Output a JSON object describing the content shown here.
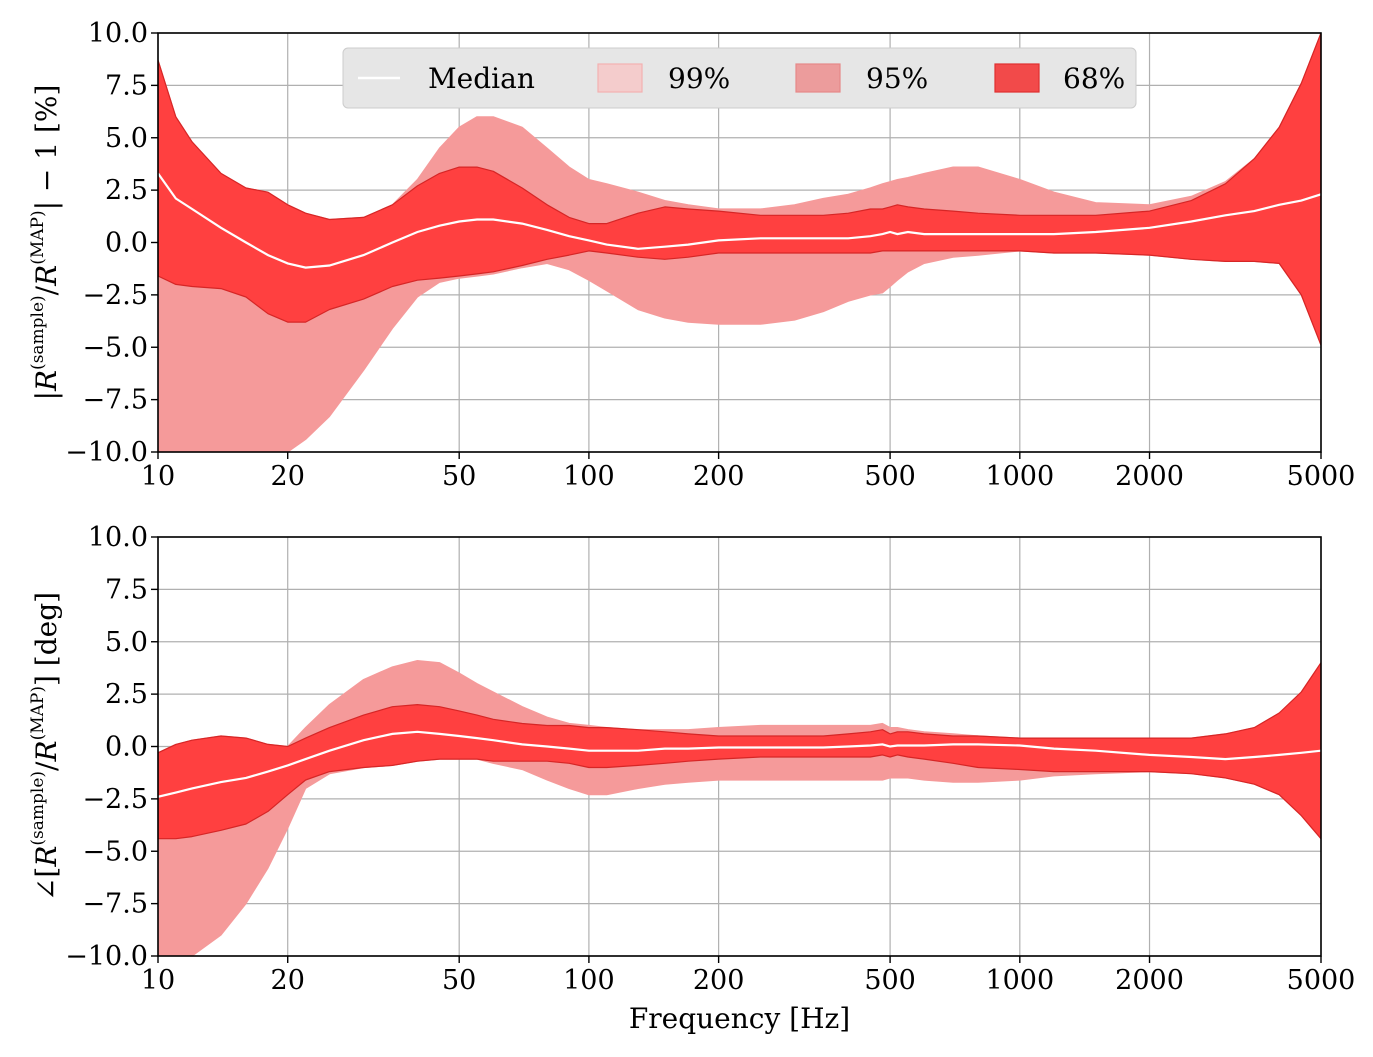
{
  "chart_data": [
    {
      "type": "area",
      "ylabel": "|R^(sample)/R^(MAP)| − 1 [%]",
      "ylabel_parts": {
        "pre": "|",
        "r1": "R",
        "sup1": "(sample)",
        "slash": "/",
        "r2": "R",
        "sup2": "(MAP)",
        "post": "| − 1 [%]"
      },
      "xlabel": "",
      "xscale": "log",
      "xlim": [
        10,
        5000
      ],
      "ylim": [
        -10,
        10
      ],
      "grid": true,
      "xticks": [
        10,
        20,
        50,
        100,
        200,
        500,
        1000,
        2000,
        5000
      ],
      "xtick_labels": [
        "10",
        "20",
        "50",
        "100",
        "200",
        "500",
        "1000",
        "2000",
        "5000"
      ],
      "yticks": [
        -10,
        -7.5,
        -5,
        -2.5,
        0,
        2.5,
        5,
        7.5,
        10
      ],
      "ytick_labels": [
        "−10.0",
        "−7.5",
        "−5.0",
        "−2.5",
        "0.0",
        "2.5",
        "5.0",
        "7.5",
        "10.0"
      ],
      "legend": {
        "placement": "top-center",
        "entries": [
          "Median",
          "99%",
          "95%",
          "68%"
        ]
      },
      "x": [
        10,
        11,
        12,
        14,
        16,
        18,
        20,
        22,
        25,
        30,
        35,
        40,
        45,
        50,
        55,
        60,
        70,
        80,
        90,
        100,
        110,
        130,
        150,
        170,
        200,
        250,
        300,
        350,
        400,
        450,
        480,
        500,
        520,
        550,
        600,
        700,
        800,
        1000,
        1200,
        1500,
        2000,
        2500,
        3000,
        3500,
        4000,
        4500,
        5000
      ],
      "series": [
        {
          "name": "Median",
          "values": [
            3.3,
            2.1,
            1.6,
            0.7,
            0.0,
            -0.6,
            -1.0,
            -1.2,
            -1.1,
            -0.6,
            0.0,
            0.5,
            0.8,
            1.0,
            1.1,
            1.1,
            0.9,
            0.6,
            0.3,
            0.1,
            -0.1,
            -0.3,
            -0.2,
            -0.1,
            0.1,
            0.2,
            0.2,
            0.2,
            0.2,
            0.3,
            0.4,
            0.5,
            0.4,
            0.5,
            0.4,
            0.4,
            0.4,
            0.4,
            0.4,
            0.5,
            0.7,
            1.0,
            1.3,
            1.5,
            1.8,
            2.0,
            2.3
          ]
        },
        {
          "name": "68%",
          "upper": [
            8.7,
            6.0,
            4.8,
            3.3,
            2.6,
            2.4,
            1.8,
            1.4,
            1.1,
            1.2,
            1.8,
            2.7,
            3.3,
            3.6,
            3.6,
            3.4,
            2.6,
            1.8,
            1.2,
            0.9,
            0.9,
            1.4,
            1.7,
            1.6,
            1.5,
            1.3,
            1.3,
            1.3,
            1.4,
            1.6,
            1.6,
            1.7,
            1.8,
            1.7,
            1.6,
            1.5,
            1.4,
            1.3,
            1.3,
            1.3,
            1.5,
            2.0,
            2.8,
            4.0,
            5.5,
            7.6,
            10.0
          ],
          "lower": [
            -1.6,
            -2.0,
            -2.1,
            -2.2,
            -2.6,
            -3.4,
            -3.8,
            -3.8,
            -3.2,
            -2.7,
            -2.1,
            -1.8,
            -1.7,
            -1.6,
            -1.5,
            -1.4,
            -1.1,
            -0.8,
            -0.6,
            -0.4,
            -0.5,
            -0.7,
            -0.8,
            -0.7,
            -0.5,
            -0.5,
            -0.5,
            -0.5,
            -0.5,
            -0.5,
            -0.4,
            -0.4,
            -0.4,
            -0.4,
            -0.4,
            -0.4,
            -0.4,
            -0.4,
            -0.5,
            -0.5,
            -0.6,
            -0.8,
            -0.9,
            -0.9,
            -1.0,
            -2.5,
            -4.9
          ]
        },
        {
          "name": "95%",
          "upper": [
            8.7,
            6.0,
            4.8,
            3.3,
            2.6,
            2.4,
            1.8,
            1.4,
            1.1,
            1.2,
            1.8,
            3.0,
            4.5,
            5.5,
            6.0,
            6.0,
            5.5,
            4.5,
            3.6,
            3.0,
            2.8,
            2.4,
            2.0,
            1.8,
            1.6,
            1.6,
            1.8,
            2.1,
            2.3,
            2.6,
            2.8,
            2.9,
            3.0,
            3.1,
            3.3,
            3.6,
            3.6,
            3.0,
            2.4,
            1.9,
            1.8,
            2.2,
            2.9,
            4.0,
            5.5,
            7.6,
            10.0
          ],
          "lower": [
            -10.0,
            -10.0,
            -10.0,
            -10.0,
            -10.0,
            -10.0,
            -10.0,
            -9.4,
            -8.3,
            -6.1,
            -4.1,
            -2.6,
            -1.9,
            -1.7,
            -1.6,
            -1.5,
            -1.2,
            -1.0,
            -1.3,
            -1.8,
            -2.3,
            -3.2,
            -3.6,
            -3.8,
            -3.9,
            -3.9,
            -3.7,
            -3.3,
            -2.8,
            -2.5,
            -2.4,
            -2.1,
            -1.8,
            -1.4,
            -1.0,
            -0.7,
            -0.6,
            -0.4,
            -0.5,
            -0.5,
            -0.6,
            -0.8,
            -0.9,
            -0.9,
            -1.0,
            -2.5,
            -4.9
          ]
        }
      ]
    },
    {
      "type": "area",
      "ylabel": "∠[R^(sample)/R^(MAP)] [deg]",
      "ylabel_parts": {
        "pre": "∠[",
        "r1": "R",
        "sup1": "(sample)",
        "slash": "/",
        "r2": "R",
        "sup2": "(MAP)",
        "post": "] [deg]"
      },
      "xlabel": "Frequency [Hz]",
      "xscale": "log",
      "xlim": [
        10,
        5000
      ],
      "ylim": [
        -10,
        10
      ],
      "grid": true,
      "xticks": [
        10,
        20,
        50,
        100,
        200,
        500,
        1000,
        2000,
        5000
      ],
      "xtick_labels": [
        "10",
        "20",
        "50",
        "100",
        "200",
        "500",
        "1000",
        "2000",
        "5000"
      ],
      "yticks": [
        -10,
        -7.5,
        -5,
        -2.5,
        0,
        2.5,
        5,
        7.5,
        10
      ],
      "ytick_labels": [
        "−10.0",
        "−7.5",
        "−5.0",
        "−2.5",
        "0.0",
        "2.5",
        "5.0",
        "7.5",
        "10.0"
      ],
      "x": [
        10,
        11,
        12,
        14,
        16,
        18,
        20,
        22,
        25,
        30,
        35,
        40,
        45,
        50,
        55,
        60,
        70,
        80,
        90,
        100,
        110,
        130,
        150,
        170,
        200,
        250,
        300,
        350,
        400,
        450,
        480,
        500,
        520,
        550,
        600,
        700,
        800,
        1000,
        1200,
        1500,
        2000,
        2500,
        3000,
        3500,
        4000,
        4500,
        5000
      ],
      "series": [
        {
          "name": "Median",
          "values": [
            -2.4,
            -2.2,
            -2.0,
            -1.7,
            -1.5,
            -1.2,
            -0.9,
            -0.6,
            -0.2,
            0.3,
            0.6,
            0.7,
            0.6,
            0.5,
            0.4,
            0.3,
            0.1,
            0.0,
            -0.1,
            -0.2,
            -0.2,
            -0.2,
            -0.1,
            -0.1,
            -0.05,
            -0.05,
            -0.05,
            -0.05,
            0.0,
            0.05,
            0.1,
            0.0,
            0.05,
            0.05,
            0.05,
            0.1,
            0.1,
            0.05,
            -0.1,
            -0.2,
            -0.4,
            -0.5,
            -0.6,
            -0.5,
            -0.4,
            -0.3,
            -0.2
          ]
        },
        {
          "name": "68%",
          "upper": [
            -0.3,
            0.1,
            0.3,
            0.5,
            0.4,
            0.1,
            0.0,
            0.4,
            0.9,
            1.5,
            1.9,
            2.0,
            1.9,
            1.7,
            1.5,
            1.3,
            1.1,
            1.0,
            1.0,
            0.9,
            0.9,
            0.8,
            0.7,
            0.6,
            0.5,
            0.5,
            0.5,
            0.5,
            0.6,
            0.7,
            0.8,
            0.6,
            0.7,
            0.7,
            0.6,
            0.5,
            0.5,
            0.4,
            0.4,
            0.4,
            0.4,
            0.4,
            0.6,
            0.9,
            1.6,
            2.6,
            4.0
          ],
          "lower": [
            -4.4,
            -4.4,
            -4.3,
            -4.0,
            -3.7,
            -3.1,
            -2.3,
            -1.6,
            -1.2,
            -1.0,
            -0.9,
            -0.7,
            -0.6,
            -0.6,
            -0.6,
            -0.7,
            -0.7,
            -0.7,
            -0.8,
            -1.0,
            -1.0,
            -0.9,
            -0.8,
            -0.7,
            -0.6,
            -0.5,
            -0.5,
            -0.5,
            -0.5,
            -0.5,
            -0.4,
            -0.5,
            -0.4,
            -0.5,
            -0.6,
            -0.8,
            -1.0,
            -1.1,
            -1.2,
            -1.2,
            -1.2,
            -1.3,
            -1.5,
            -1.8,
            -2.3,
            -3.3,
            -4.4
          ]
        },
        {
          "name": "95%",
          "upper": [
            -0.3,
            0.1,
            0.3,
            0.5,
            0.4,
            0.1,
            0.0,
            0.9,
            2.0,
            3.2,
            3.8,
            4.1,
            4.0,
            3.5,
            3.0,
            2.6,
            1.9,
            1.4,
            1.1,
            1.0,
            0.9,
            0.8,
            0.8,
            0.8,
            0.9,
            1.0,
            1.0,
            1.0,
            1.0,
            1.0,
            1.1,
            0.9,
            0.9,
            0.8,
            0.7,
            0.6,
            0.5,
            0.4,
            0.4,
            0.4,
            0.4,
            0.4,
            0.6,
            0.9,
            1.6,
            2.6,
            4.0
          ],
          "lower": [
            -10.0,
            -10.0,
            -10.0,
            -9.0,
            -7.5,
            -5.8,
            -3.9,
            -2.0,
            -1.3,
            -1.0,
            -0.9,
            -0.7,
            -0.6,
            -0.6,
            -0.6,
            -0.8,
            -1.1,
            -1.6,
            -2.0,
            -2.3,
            -2.3,
            -2.0,
            -1.8,
            -1.7,
            -1.6,
            -1.6,
            -1.6,
            -1.6,
            -1.6,
            -1.6,
            -1.6,
            -1.5,
            -1.5,
            -1.5,
            -1.6,
            -1.7,
            -1.7,
            -1.6,
            -1.4,
            -1.3,
            -1.2,
            -1.3,
            -1.5,
            -1.8,
            -2.3,
            -3.3,
            -4.4
          ]
        }
      ]
    }
  ],
  "colors": {
    "band99": "#f7a3a3",
    "band95": "#f59a9a",
    "band68": "#ff4040",
    "band68_edge": "#d62626",
    "median": "#ffffff",
    "grid": "#b0b0b0",
    "legend_bg": "#e6e6e6"
  }
}
